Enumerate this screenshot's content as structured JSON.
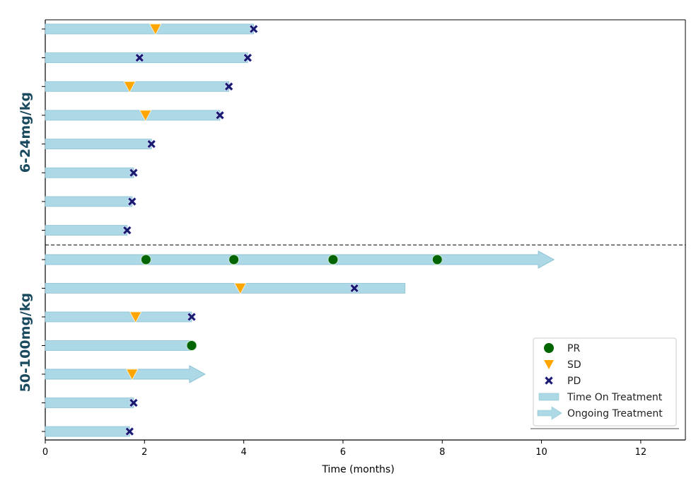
{
  "chart_data": {
    "type": "swimmer",
    "xlabel": "Time (months)",
    "xlim": [
      0,
      12.9
    ],
    "xticks": [
      0,
      2,
      4,
      6,
      8,
      10,
      12
    ],
    "groups": [
      {
        "name": "6-24mg/kg",
        "patients": [
          {
            "duration": 4.2,
            "ongoing": false,
            "events": [
              {
                "type": "SD",
                "t": 2.22
              },
              {
                "type": "PD",
                "t": 4.2
              }
            ]
          },
          {
            "duration": 4.08,
            "ongoing": false,
            "events": [
              {
                "type": "PD",
                "t": 1.9
              },
              {
                "type": "PD",
                "t": 4.08
              }
            ]
          },
          {
            "duration": 3.7,
            "ongoing": false,
            "events": [
              {
                "type": "SD",
                "t": 1.7
              },
              {
                "type": "PD",
                "t": 3.7
              }
            ]
          },
          {
            "duration": 3.52,
            "ongoing": false,
            "events": [
              {
                "type": "SD",
                "t": 2.02
              },
              {
                "type": "PD",
                "t": 3.52
              }
            ]
          },
          {
            "duration": 2.14,
            "ongoing": false,
            "events": [
              {
                "type": "PD",
                "t": 2.14
              }
            ]
          },
          {
            "duration": 1.78,
            "ongoing": false,
            "events": [
              {
                "type": "PD",
                "t": 1.78
              }
            ]
          },
          {
            "duration": 1.75,
            "ongoing": false,
            "events": [
              {
                "type": "PD",
                "t": 1.75
              }
            ]
          },
          {
            "duration": 1.65,
            "ongoing": false,
            "events": [
              {
                "type": "PD",
                "t": 1.65
              }
            ]
          }
        ]
      },
      {
        "name": "50-100mg/kg",
        "patients": [
          {
            "duration": 10.25,
            "ongoing": true,
            "events": [
              {
                "type": "PR",
                "t": 2.03
              },
              {
                "type": "PR",
                "t": 3.8
              },
              {
                "type": "PR",
                "t": 5.8
              },
              {
                "type": "PR",
                "t": 7.9
              }
            ]
          },
          {
            "duration": 7.25,
            "ongoing": false,
            "events": [
              {
                "type": "SD",
                "t": 3.93
              },
              {
                "type": "PD",
                "t": 6.23
              }
            ]
          },
          {
            "duration": 2.95,
            "ongoing": false,
            "events": [
              {
                "type": "SD",
                "t": 1.82
              },
              {
                "type": "PD",
                "t": 2.95
              }
            ]
          },
          {
            "duration": 2.95,
            "ongoing": false,
            "events": [
              {
                "type": "PR",
                "t": 2.95
              }
            ]
          },
          {
            "duration": 3.22,
            "ongoing": true,
            "events": [
              {
                "type": "SD",
                "t": 1.75
              }
            ]
          },
          {
            "duration": 1.78,
            "ongoing": false,
            "events": [
              {
                "type": "PD",
                "t": 1.78
              }
            ]
          },
          {
            "duration": 1.7,
            "ongoing": false,
            "events": [
              {
                "type": "PD",
                "t": 1.7
              }
            ]
          }
        ]
      }
    ],
    "legend": {
      "placement": "lower-right",
      "entries": [
        {
          "key": "PR",
          "label": "PR",
          "symbol": "circle"
        },
        {
          "key": "SD",
          "label": "SD",
          "symbol": "triangle-down"
        },
        {
          "key": "PD",
          "label": "PD",
          "symbol": "x"
        },
        {
          "key": "bar",
          "label": "Time On Treatment",
          "symbol": "bar"
        },
        {
          "key": "arrow",
          "label": "Ongoing Treatment",
          "symbol": "arrow"
        }
      ]
    },
    "colors": {
      "bar": "#add8e6",
      "bar_edge": "#8ec5d6",
      "PR": "#006400",
      "SD": "#ffa500",
      "PD": "#191970",
      "group_label": "#1a4a5e"
    }
  }
}
